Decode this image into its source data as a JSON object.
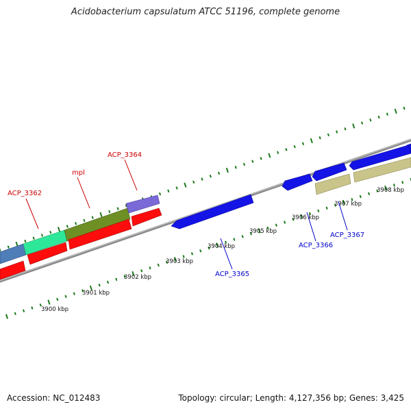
{
  "title": "Acidobacterium capsulatum ATCC 51196, complete genome",
  "footer": {
    "accession": "Accession: NC_012483",
    "topology": "Topology: circular; Length: 4,127,356 bp; Genes: 3,425"
  },
  "colors": {
    "ticks": "#1a7a1a",
    "backbone": "#8a8a8a",
    "label_forward": "#cc0000",
    "label_reverse": "#0000cc"
  },
  "scale": {
    "ticks": [
      {
        "label": "3900 kbp"
      },
      {
        "label": "3901 kbp"
      },
      {
        "label": "3902 kbp"
      },
      {
        "label": "3903 kbp"
      },
      {
        "label": "3904 kbp"
      },
      {
        "label": "3905 kbp"
      },
      {
        "label": "3906 kbp"
      },
      {
        "label": "3907 kbp"
      },
      {
        "label": "3908 kbp"
      }
    ]
  },
  "gene_labels": [
    {
      "id": "acp3362",
      "text": "ACP_3362",
      "strand": "forward"
    },
    {
      "id": "mpl",
      "text": "mpl",
      "strand": "forward"
    },
    {
      "id": "acp3364",
      "text": "ACP_3364",
      "strand": "forward"
    },
    {
      "id": "acp3365",
      "text": "ACP_3365",
      "strand": "reverse"
    },
    {
      "id": "acp3366",
      "text": "ACP_3366",
      "strand": "reverse"
    },
    {
      "id": "acp3367",
      "text": "ACP_3367",
      "strand": "reverse"
    }
  ]
}
